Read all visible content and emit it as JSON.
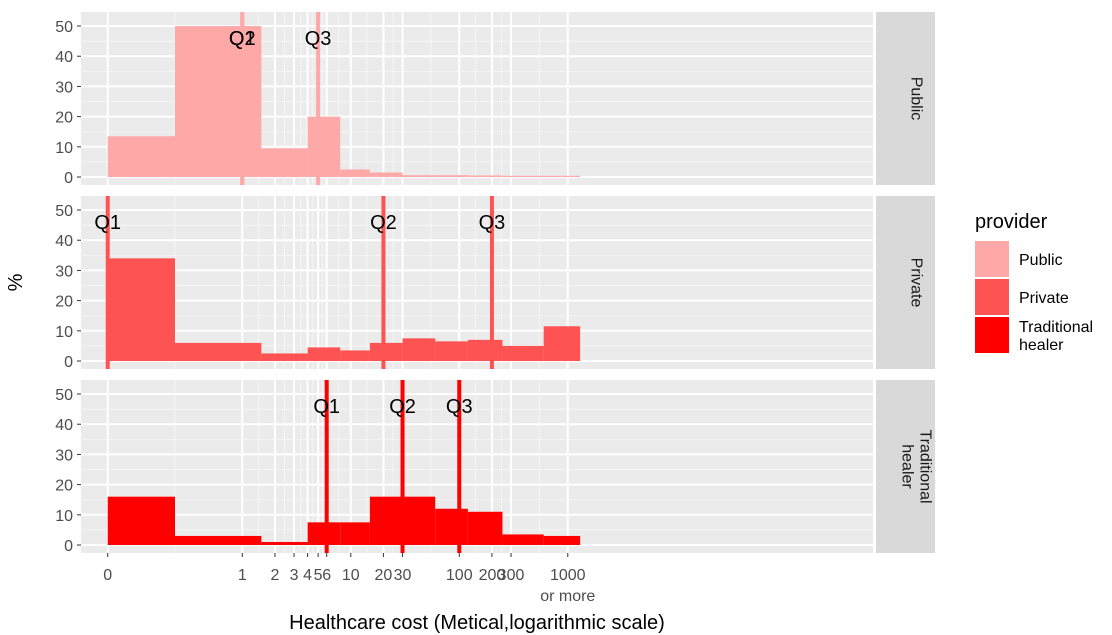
{
  "chart_data": {
    "type": "bar",
    "xlabel": "Healthcare cost (Metical,logarithmic scale)",
    "ylabel": "%",
    "ylim": [
      0,
      52
    ],
    "yticks": [
      0,
      10,
      20,
      30,
      40,
      50
    ],
    "x_scale": "log",
    "x_ticks": [
      {
        "value": 0,
        "label": "0"
      },
      {
        "value": 1,
        "label": "1"
      },
      {
        "value": 2,
        "label": "2"
      },
      {
        "value": 3,
        "label": "3"
      },
      {
        "value": 4,
        "label": "4"
      },
      {
        "value": 5,
        "label": "5"
      },
      {
        "value": 6,
        "label": "6"
      },
      {
        "value": 10,
        "label": "10"
      },
      {
        "value": 20,
        "label": "20"
      },
      {
        "value": 30,
        "label": "30"
      },
      {
        "value": 100,
        "label": "100"
      },
      {
        "value": 200,
        "label": "200"
      },
      {
        "value": 300,
        "label": "300"
      },
      {
        "value": 1000,
        "label": "1000",
        "sublabel": "or more"
      }
    ],
    "grid": true,
    "legend": {
      "title": "provider",
      "position": "right",
      "entries": [
        {
          "label": "Public",
          "color": "#FFA8A8"
        },
        {
          "label": "Private",
          "color": "#FF5252"
        },
        {
          "label": "Traditional healer",
          "lines": [
            "Traditional",
            "healer"
          ],
          "color": "#FF0000"
        }
      ]
    },
    "panels": [
      {
        "name": "Public",
        "strip_lines": [
          "Public"
        ],
        "color": "#FFA8A8",
        "bins": [
          {
            "from": 0,
            "to": 0.5,
            "value": 13.5
          },
          {
            "from": 0.5,
            "to": 1.5,
            "value": 50
          },
          {
            "from": 1.5,
            "to": 4,
            "value": 9.5
          },
          {
            "from": 4,
            "to": 8,
            "value": 20
          },
          {
            "from": 8,
            "to": 15,
            "value": 2.5
          },
          {
            "from": 15,
            "to": 30,
            "value": 1.5
          },
          {
            "from": 30,
            "to": 60,
            "value": 0.6
          },
          {
            "from": 60,
            "to": 120,
            "value": 0.6
          },
          {
            "from": 120,
            "to": 250,
            "value": 0.5
          },
          {
            "from": 250,
            "to": 600,
            "value": 0.4
          },
          {
            "from": 600,
            "to": 1300,
            "value": 0.4
          }
        ],
        "quantiles": [
          {
            "label": "Q1",
            "value": 1
          },
          {
            "label": "Q2",
            "value": 1
          },
          {
            "label": "Q3",
            "value": 5
          }
        ]
      },
      {
        "name": "Private",
        "strip_lines": [
          "Private"
        ],
        "color": "#FF5252",
        "bins": [
          {
            "from": 0,
            "to": 0.5,
            "value": 34
          },
          {
            "from": 0.5,
            "to": 1.5,
            "value": 6
          },
          {
            "from": 1.5,
            "to": 4,
            "value": 2.5
          },
          {
            "from": 4,
            "to": 8,
            "value": 4.5
          },
          {
            "from": 8,
            "to": 15,
            "value": 3.5
          },
          {
            "from": 15,
            "to": 30,
            "value": 6
          },
          {
            "from": 30,
            "to": 60,
            "value": 7.5
          },
          {
            "from": 60,
            "to": 120,
            "value": 6.5
          },
          {
            "from": 120,
            "to": 250,
            "value": 7
          },
          {
            "from": 250,
            "to": 600,
            "value": 5
          },
          {
            "from": 600,
            "to": 1300,
            "value": 11.5
          }
        ],
        "quantiles": [
          {
            "label": "Q1",
            "value": 0
          },
          {
            "label": "Q2",
            "value": 20
          },
          {
            "label": "Q3",
            "value": 200
          }
        ]
      },
      {
        "name": "Traditional healer",
        "strip_lines": [
          "Traditional",
          "healer"
        ],
        "color": "#FF0000",
        "bins": [
          {
            "from": 0,
            "to": 0.5,
            "value": 16
          },
          {
            "from": 0.5,
            "to": 1.5,
            "value": 3
          },
          {
            "from": 1.5,
            "to": 4,
            "value": 1
          },
          {
            "from": 4,
            "to": 8,
            "value": 7.5
          },
          {
            "from": 8,
            "to": 15,
            "value": 7.5
          },
          {
            "from": 15,
            "to": 30,
            "value": 16
          },
          {
            "from": 30,
            "to": 60,
            "value": 16
          },
          {
            "from": 60,
            "to": 120,
            "value": 12
          },
          {
            "from": 120,
            "to": 250,
            "value": 11
          },
          {
            "from": 250,
            "to": 600,
            "value": 3.5
          },
          {
            "from": 600,
            "to": 1300,
            "value": 3
          }
        ],
        "quantiles": [
          {
            "label": "Q1",
            "value": 6
          },
          {
            "label": "Q2",
            "value": 30
          },
          {
            "label": "Q3",
            "value": 100
          }
        ]
      }
    ]
  }
}
